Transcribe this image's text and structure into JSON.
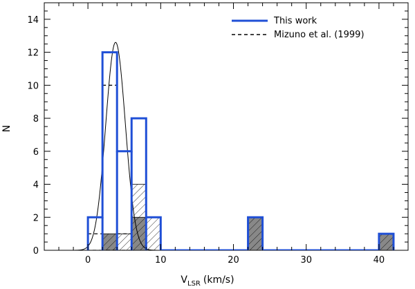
{
  "chart_data": {
    "type": "histogram",
    "xlabel": {
      "main": "V",
      "sub": "LSR",
      "unit": "(km/s)"
    },
    "ylabel": "N",
    "xlim": [
      -6,
      44
    ],
    "ylim": [
      0,
      15
    ],
    "xticks": [
      0,
      10,
      20,
      30,
      40
    ],
    "yticks": [
      0,
      2,
      4,
      6,
      8,
      10,
      12,
      14
    ],
    "grid": false,
    "legend_position": "top-right",
    "colors": {
      "this_work": "#1f4fd6",
      "mizuno": "#000000",
      "gauss": "#000000",
      "dark_fill": "#888888",
      "hatch": "#000000"
    },
    "series": [
      {
        "name": "This work",
        "style": "solid-blue-step",
        "bins": [
          {
            "x0": 0,
            "x1": 2,
            "n": 2
          },
          {
            "x0": 2,
            "x1": 4,
            "n": 12
          },
          {
            "x0": 4,
            "x1": 6,
            "n": 6
          },
          {
            "x0": 6,
            "x1": 8,
            "n": 8
          },
          {
            "x0": 8,
            "x1": 10,
            "n": 2
          },
          {
            "x0": 10,
            "x1": 22,
            "n": 0
          },
          {
            "x0": 22,
            "x1": 24,
            "n": 2
          },
          {
            "x0": 24,
            "x1": 40,
            "n": 0
          },
          {
            "x0": 40,
            "x1": 42,
            "n": 1
          }
        ]
      },
      {
        "name": "Mizuno et al. (1999)",
        "style": "dashed-black-step",
        "bins": [
          {
            "x0": 0,
            "x1": 2,
            "n": 1
          },
          {
            "x0": 2,
            "x1": 4,
            "n": 10
          },
          {
            "x0": 4,
            "x1": 6,
            "n": 1
          }
        ]
      },
      {
        "name": "dark-filled",
        "style": "gray-fill-hatched",
        "bins": [
          {
            "x0": 2,
            "x1": 4,
            "n": 1
          },
          {
            "x0": 6,
            "x1": 8,
            "n": 2
          },
          {
            "x0": 22,
            "x1": 24,
            "n": 2
          },
          {
            "x0": 40,
            "x1": 42,
            "n": 1
          }
        ]
      },
      {
        "name": "hatched",
        "style": "hatch-only",
        "bins": [
          {
            "x0": 4,
            "x1": 6,
            "n": 1
          },
          {
            "x0": 6,
            "x1": 8,
            "n": 4
          },
          {
            "x0": 8,
            "x1": 10,
            "n": 2
          }
        ]
      },
      {
        "name": "gaussian-fit",
        "style": "thin-black-curve",
        "gaussian": {
          "mu": 3.8,
          "sigma": 1.35,
          "amplitude": 12.6
        }
      }
    ]
  }
}
